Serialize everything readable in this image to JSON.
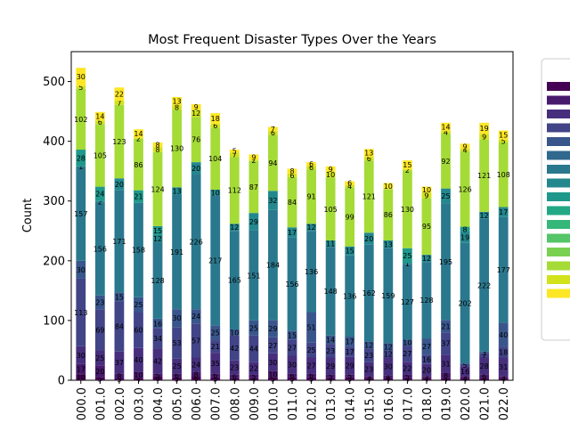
{
  "chart_data": {
    "type": "bar",
    "stacked": true,
    "title": "Most Frequent Disaster Types Over the Years",
    "xlabel": "",
    "ylabel": "Count",
    "ylim": [
      0,
      550
    ],
    "yticks": [
      0,
      100,
      200,
      300,
      400,
      500
    ],
    "categories": [
      "000.0",
      "001.0",
      "002.0",
      "003.0",
      "004.0",
      "005.0",
      "006.0",
      "007.0",
      "008.0",
      "009.0",
      "010.0",
      "011.0",
      "012.0",
      "013.0",
      "014.0",
      "015.0",
      "016.0",
      "017.0",
      "018.0",
      "019.0",
      "020.0",
      "021.0",
      "022.0"
    ],
    "legend_placement": "right",
    "legend_entries_visible": false,
    "series": [
      {
        "color": "#440154",
        "values": [
          10,
          5,
          3,
          4,
          6,
          5,
          6,
          5,
          4,
          4,
          5,
          5,
          5,
          4,
          5,
          4,
          4,
          4,
          4,
          4,
          4,
          4,
          4
        ]
      },
      {
        "color": "#481a6c",
        "values": [
          17,
          20,
          8,
          10,
          5,
          6,
          8,
          6,
          6,
          5,
          10,
          6,
          6,
          5,
          5,
          3,
          4,
          5,
          3,
          8,
          3,
          6,
          3
        ]
      },
      {
        "color": "#472f7d",
        "values": [
          30,
          25,
          37,
          40,
          42,
          25,
          24,
          35,
          23,
          22,
          30,
          30,
          27,
          29,
          29,
          23,
          30,
          22,
          20,
          31,
          16,
          28,
          31
        ]
      },
      {
        "color": "#414487",
        "values": [
          113,
          69,
          84,
          60,
          34,
          53,
          57,
          21,
          42,
          44,
          27,
          27,
          25,
          23,
          17,
          23,
          12,
          27,
          16,
          37,
          5,
          7,
          18
        ]
      },
      {
        "color": "#39568c",
        "values": [
          30,
          23,
          15,
          25,
          16,
          30,
          24,
          25,
          10,
          25,
          29,
          15,
          51,
          14,
          17,
          12,
          12,
          10,
          27,
          21,
          0,
          3,
          40
        ]
      },
      {
        "color": "#31688e",
        "values": [
          0,
          0,
          0,
          0,
          0,
          0,
          0,
          0,
          0,
          0,
          0,
          0,
          0,
          0,
          0,
          0,
          0,
          0,
          0,
          0,
          0,
          0,
          0
        ]
      },
      {
        "color": "#2a788e",
        "values": [
          157,
          156,
          171,
          158,
          128,
          191,
          226,
          217,
          165,
          151,
          184,
          156,
          136,
          148,
          136,
          162,
          159,
          127,
          128,
          195,
          202,
          222,
          177
        ]
      },
      {
        "color": "#23888e",
        "values": [
          1,
          2,
          20,
          0,
          12,
          13,
          20,
          10,
          12,
          29,
          32,
          17,
          12,
          11,
          15,
          20,
          13,
          1,
          12,
          25,
          19,
          12,
          17
        ]
      },
      {
        "color": "#1f988b",
        "values": [
          28,
          24,
          0,
          21,
          15,
          0,
          0,
          0,
          0,
          0,
          0,
          0,
          0,
          0,
          0,
          0,
          0,
          25,
          0,
          0,
          8,
          0,
          0
        ]
      },
      {
        "color": "#22a884",
        "values": [
          0,
          0,
          0,
          0,
          0,
          0,
          0,
          0,
          0,
          0,
          0,
          0,
          0,
          0,
          0,
          0,
          0,
          0,
          0,
          0,
          0,
          0,
          0
        ]
      },
      {
        "color": "#35b779",
        "values": [
          0,
          0,
          0,
          0,
          0,
          0,
          0,
          0,
          0,
          0,
          0,
          0,
          0,
          0,
          0,
          0,
          0,
          0,
          0,
          0,
          0,
          0,
          0
        ]
      },
      {
        "color": "#54c568",
        "values": [
          0,
          0,
          0,
          0,
          0,
          0,
          0,
          0,
          0,
          0,
          0,
          0,
          0,
          0,
          0,
          0,
          0,
          0,
          0,
          0,
          0,
          0,
          0
        ]
      },
      {
        "color": "#7ad151",
        "values": [
          0,
          0,
          0,
          0,
          0,
          0,
          0,
          0,
          0,
          0,
          0,
          0,
          0,
          0,
          0,
          0,
          0,
          0,
          0,
          0,
          0,
          0,
          0
        ]
      },
      {
        "color": "#a5db36",
        "values": [
          102,
          105,
          123,
          86,
          124,
          130,
          76,
          104,
          112,
          87,
          94,
          84,
          91,
          105,
          99,
          121,
          86,
          130,
          95,
          92,
          126,
          121,
          108
        ]
      },
      {
        "color": "#d2e21b",
        "values": [
          5,
          6,
          7,
          2,
          8,
          8,
          12,
          6,
          7,
          2,
          6,
          6,
          6,
          10,
          4,
          6,
          0,
          2,
          9,
          4,
          4,
          9,
          5
        ]
      },
      {
        "color": "#fde725",
        "values": [
          30,
          14,
          22,
          14,
          8,
          13,
          9,
          18,
          5,
          9,
          7,
          8,
          6,
          9,
          6,
          13,
          10,
          15,
          10,
          14,
          9,
          19,
          15
        ]
      }
    ]
  }
}
